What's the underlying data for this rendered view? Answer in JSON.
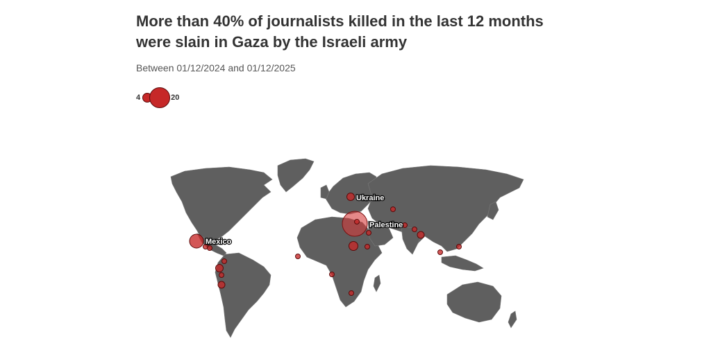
{
  "header": {
    "title": "More than 40% of journalists killed in the last 12 months were slain in Gaza by the Israeli army",
    "subtitle": "Between 01/12/2024 and 01/12/2025"
  },
  "legend": {
    "min_label": "4",
    "max_label": "20"
  },
  "map": {
    "labels": {
      "ukraine": "Ukraine",
      "palestine": "Palestine",
      "mexico": "Mexico"
    },
    "colors": {
      "land": "#5f5f5f",
      "bubble": "#c62828",
      "background": "#ffffff"
    }
  }
}
